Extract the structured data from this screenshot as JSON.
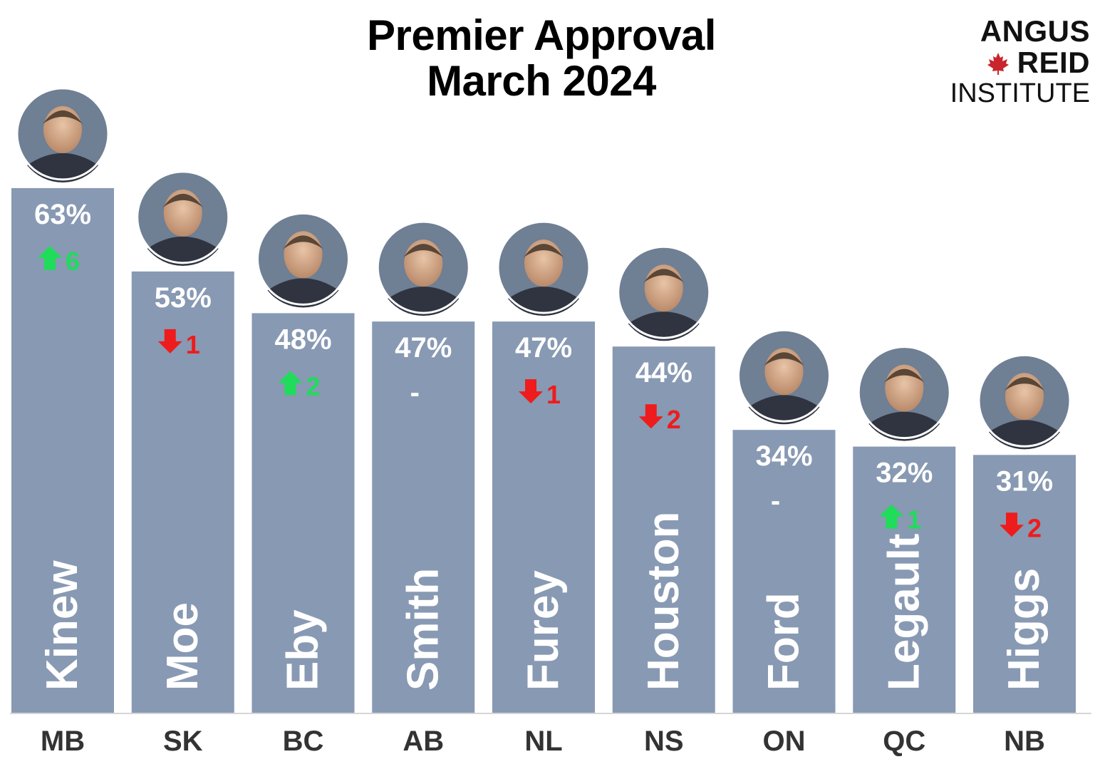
{
  "chart_data": {
    "type": "bar",
    "title_lines": [
      "Premier Approval",
      "March 2024"
    ],
    "categories": [
      "MB",
      "SK",
      "BC",
      "AB",
      "NL",
      "NS",
      "ON",
      "QC",
      "NB"
    ],
    "premiers": [
      "Kinew",
      "Moe",
      "Eby",
      "Smith",
      "Furey",
      "Houston",
      "Ford",
      "Legault",
      "Higgs"
    ],
    "values": [
      63,
      53,
      48,
      47,
      47,
      44,
      34,
      32,
      31
    ],
    "value_labels": [
      "63%",
      "53%",
      "48%",
      "47%",
      "47%",
      "44%",
      "34%",
      "32%",
      "31%"
    ],
    "changes": [
      {
        "direction": "up",
        "amount": "6"
      },
      {
        "direction": "down",
        "amount": "1"
      },
      {
        "direction": "up",
        "amount": "2"
      },
      {
        "direction": "none",
        "amount": "-"
      },
      {
        "direction": "down",
        "amount": "1"
      },
      {
        "direction": "down",
        "amount": "2"
      },
      {
        "direction": "none",
        "amount": "-"
      },
      {
        "direction": "up",
        "amount": "1"
      },
      {
        "direction": "down",
        "amount": "2"
      }
    ],
    "ylim": [
      0,
      63
    ],
    "bar_color": "#8899b3",
    "up_color": "#1fdc5a",
    "down_color": "#ee1c1c"
  },
  "logo": {
    "line1": "ANGUS",
    "line2": "REID",
    "line3": "INSTITUTE",
    "leaf_color": "#c9252c"
  }
}
